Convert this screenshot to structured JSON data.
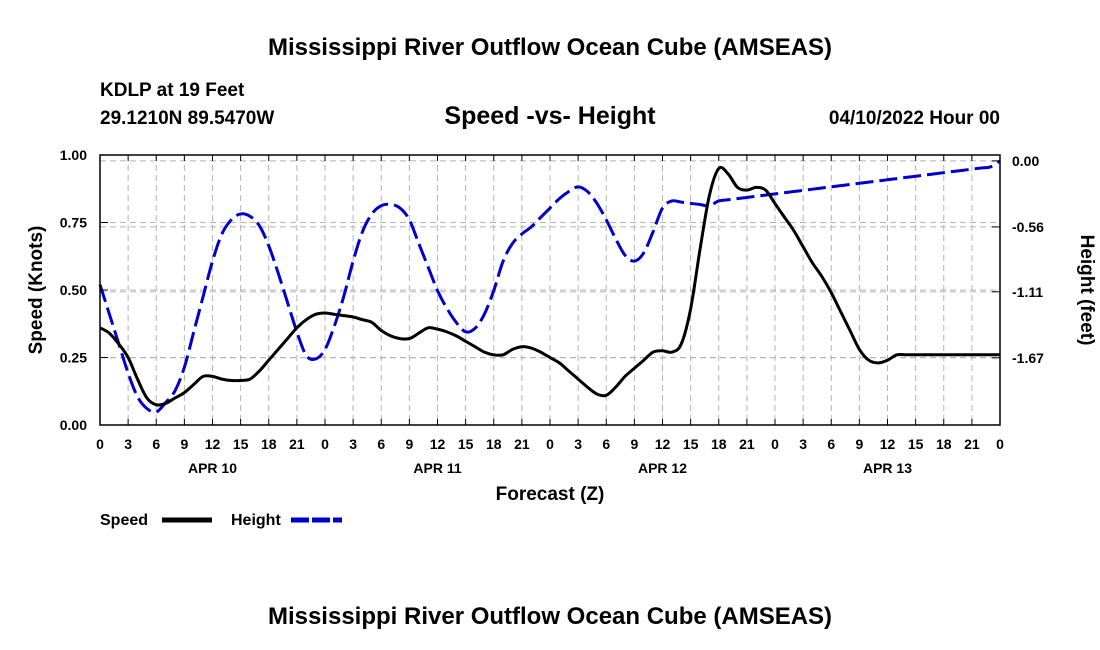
{
  "title": "Mississippi River Outflow Ocean Cube (AMSEAS)",
  "footer_title": "Mississippi River Outflow Ocean Cube (AMSEAS)",
  "station": "KDLP at 19 Feet",
  "coords": "29.1210N  89.5470W",
  "date": "04/10/2022 Hour 00",
  "chart_data": {
    "type": "line",
    "title": "Speed -vs- Height",
    "xlabel": "Forecast (Z)",
    "ylabel": "Speed (Knots)",
    "y2label": "Height (feet)",
    "xlim": [
      0,
      96
    ],
    "ylim": [
      0,
      1
    ],
    "y2lim": [
      -2.24,
      0.05
    ],
    "grid": true,
    "legend_position": "bottom-left",
    "x_tick_labels": [
      "0",
      "3",
      "6",
      "9",
      "12",
      "15",
      "18",
      "21",
      "0",
      "3",
      "6",
      "9",
      "12",
      "15",
      "18",
      "21",
      "0",
      "3",
      "6",
      "9",
      "12",
      "15",
      "18",
      "21",
      "0",
      "3",
      "6",
      "9",
      "12",
      "15",
      "18",
      "21",
      "0"
    ],
    "date_labels": [
      {
        "label": "APR 10",
        "x": 12
      },
      {
        "label": "APR 11",
        "x": 36
      },
      {
        "label": "APR 12",
        "x": 60
      },
      {
        "label": "APR 13",
        "x": 84
      }
    ],
    "y_ticks": [
      "0.00",
      "0.25",
      "0.50",
      "0.75",
      "1.00"
    ],
    "y_tick_values": [
      0,
      0.25,
      0.5,
      0.75,
      1.0
    ],
    "y2_ticks": [
      "0.00",
      "-0.56",
      "-1.11",
      "-1.67"
    ],
    "y2_tick_values": [
      0,
      -0.56,
      -1.11,
      -1.67
    ],
    "series": [
      {
        "name": "Speed",
        "color": "#000000",
        "dashed": false,
        "x": [
          0,
          1,
          2,
          3,
          4,
          5,
          6,
          7,
          8,
          9,
          10,
          11,
          12,
          13,
          14,
          15,
          16,
          17,
          18,
          19,
          20,
          21,
          22,
          23,
          24,
          25,
          26,
          27,
          28,
          29,
          30,
          31,
          32,
          33,
          34,
          35,
          36,
          37,
          38,
          39,
          40,
          41,
          42,
          43,
          44,
          45,
          46,
          47,
          48,
          49,
          50,
          51,
          52,
          53,
          54,
          55,
          56,
          57,
          58,
          59,
          60,
          61,
          62,
          63,
          64,
          65,
          66,
          67,
          68,
          69,
          70,
          71,
          72,
          73,
          74,
          75,
          76,
          77,
          78,
          79,
          80,
          81,
          82,
          83,
          84,
          85,
          86,
          87,
          88,
          89,
          90,
          91,
          92,
          93,
          94,
          95,
          96
        ],
        "values": [
          0.36,
          0.34,
          0.3,
          0.25,
          0.17,
          0.1,
          0.075,
          0.08,
          0.1,
          0.12,
          0.15,
          0.18,
          0.18,
          0.17,
          0.165,
          0.165,
          0.17,
          0.2,
          0.24,
          0.28,
          0.32,
          0.36,
          0.39,
          0.41,
          0.415,
          0.41,
          0.405,
          0.4,
          0.39,
          0.38,
          0.35,
          0.33,
          0.32,
          0.32,
          0.34,
          0.36,
          0.355,
          0.345,
          0.33,
          0.31,
          0.29,
          0.27,
          0.26,
          0.26,
          0.28,
          0.29,
          0.285,
          0.27,
          0.25,
          0.23,
          0.2,
          0.17,
          0.14,
          0.115,
          0.11,
          0.14,
          0.18,
          0.21,
          0.24,
          0.27,
          0.275,
          0.27,
          0.3,
          0.43,
          0.65,
          0.85,
          0.95,
          0.93,
          0.88,
          0.87,
          0.88,
          0.87,
          0.82,
          0.77,
          0.72,
          0.66,
          0.6,
          0.55,
          0.49,
          0.42,
          0.35,
          0.28,
          0.24,
          0.23,
          0.24,
          0.26,
          0.26,
          0.26,
          0.26,
          0.26,
          0.26,
          0.26,
          0.26,
          0.26,
          0.26,
          0.26,
          0.26
        ]
      },
      {
        "name": "Height",
        "color": "#0000cc",
        "dashed": true,
        "x": [
          0,
          1,
          2,
          3,
          4,
          5,
          6,
          7,
          8,
          9,
          10,
          11,
          12,
          13,
          14,
          15,
          16,
          17,
          18,
          19,
          20,
          21,
          22,
          23,
          24,
          25,
          26,
          27,
          28,
          29,
          30,
          31,
          32,
          33,
          34,
          35,
          36,
          37,
          38,
          39,
          40,
          41,
          42,
          43,
          44,
          45,
          46,
          47,
          48,
          49,
          50,
          51,
          52,
          53,
          54,
          55,
          56,
          57,
          58,
          59,
          60,
          61,
          62,
          63,
          64,
          65,
          66,
          67,
          68,
          69,
          70,
          71,
          72,
          73,
          74,
          75,
          76,
          77,
          78,
          79,
          80,
          81,
          82,
          83,
          84,
          85,
          86,
          87,
          88,
          89,
          90,
          91,
          92,
          93,
          94,
          95,
          96
        ],
        "values": [
          -1.05,
          -1.3,
          -1.55,
          -1.8,
          -2.0,
          -2.1,
          -2.13,
          -2.05,
          -1.95,
          -1.75,
          -1.45,
          -1.15,
          -0.85,
          -0.62,
          -0.5,
          -0.45,
          -0.47,
          -0.55,
          -0.72,
          -0.95,
          -1.2,
          -1.45,
          -1.65,
          -1.68,
          -1.6,
          -1.4,
          -1.15,
          -0.85,
          -0.6,
          -0.45,
          -0.38,
          -0.37,
          -0.4,
          -0.5,
          -0.7,
          -0.9,
          -1.1,
          -1.25,
          -1.37,
          -1.45,
          -1.42,
          -1.3,
          -1.1,
          -0.85,
          -0.7,
          -0.62,
          -0.56,
          -0.48,
          -0.4,
          -0.32,
          -0.26,
          -0.22,
          -0.26,
          -0.36,
          -0.5,
          -0.66,
          -0.8,
          -0.85,
          -0.78,
          -0.6,
          -0.4,
          -0.34,
          -0.35,
          -0.36,
          -0.37,
          -0.38,
          -0.34,
          -0.33,
          -0.32,
          -0.31,
          -0.3,
          -0.29,
          -0.28,
          -0.27,
          -0.26,
          -0.25,
          -0.24,
          -0.23,
          -0.22,
          -0.21,
          -0.2,
          -0.19,
          -0.18,
          -0.17,
          -0.16,
          -0.15,
          -0.14,
          -0.13,
          -0.12,
          -0.11,
          -0.1,
          -0.09,
          -0.08,
          -0.07,
          -0.06,
          -0.05,
          0.0
        ]
      }
    ]
  }
}
